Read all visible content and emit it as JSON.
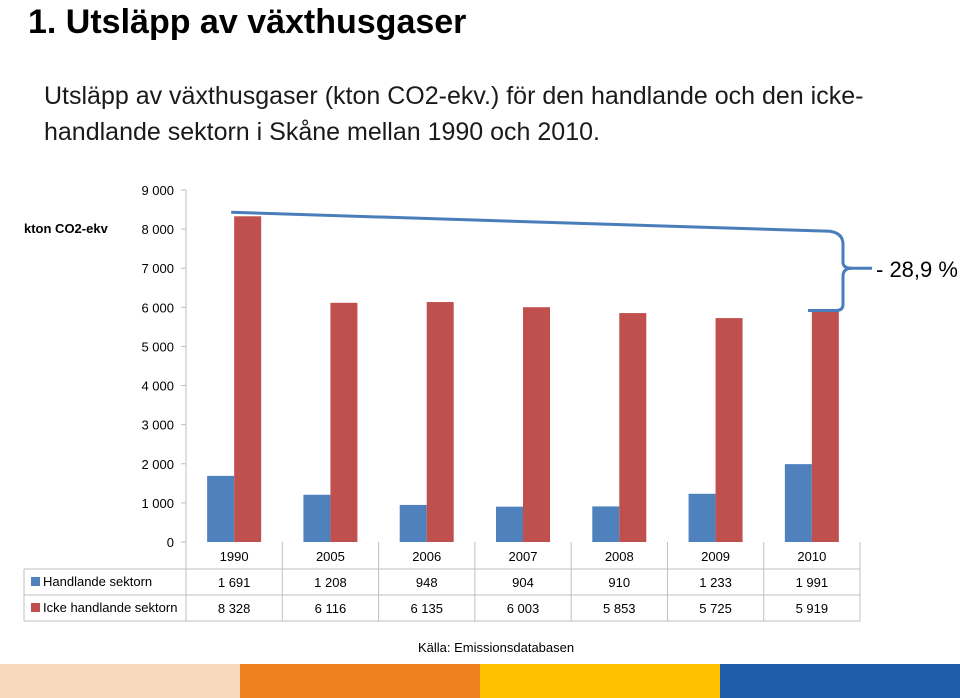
{
  "page": {
    "title": "1. Utsläpp av växthusgaser",
    "subtitle": "Utsläpp av växthusgaser (kton CO2-ekv.) för den handlande och den icke-handlande sektorn i Skåne mellan 1990 och 2010.",
    "unit_label": "kton CO2-ekv",
    "source": "Källa: Emissionsdatabasen",
    "annotation": "- 28,9 %"
  },
  "colors": {
    "handlande": "#4f81bd",
    "icke_handlande": "#c0504d",
    "bracket": "#4a7ebb",
    "bottom_bar": [
      "#f7d8ba",
      "#f07f1e",
      "#ffc000",
      "#1f5da8"
    ]
  },
  "chart_data": {
    "type": "bar",
    "title": "",
    "ylabel": "kton CO2-ekv",
    "ylim": [
      0,
      9000
    ],
    "yticks": [
      "0",
      "1 000",
      "2 000",
      "3 000",
      "4 000",
      "5 000",
      "6 000",
      "7 000",
      "8 000",
      "9 000"
    ],
    "categories": [
      "1990",
      "2005",
      "2006",
      "2007",
      "2008",
      "2009",
      "2010"
    ],
    "series": [
      {
        "name": "Handlande sektorn",
        "values": [
          1691,
          1208,
          948,
          904,
          910,
          1233,
          1991
        ],
        "labels": [
          "1 691",
          "1 208",
          "948",
          "904",
          "910",
          "1 233",
          "1 991"
        ]
      },
      {
        "name": "Icke handlande sektorn",
        "values": [
          8328,
          6116,
          6135,
          6003,
          5853,
          5725,
          5919
        ],
        "labels": [
          "8 328",
          "6 116",
          "6 135",
          "6 003",
          "5 853",
          "5 725",
          "5 919"
        ]
      }
    ],
    "legend": "data-table-left",
    "grid": false
  }
}
